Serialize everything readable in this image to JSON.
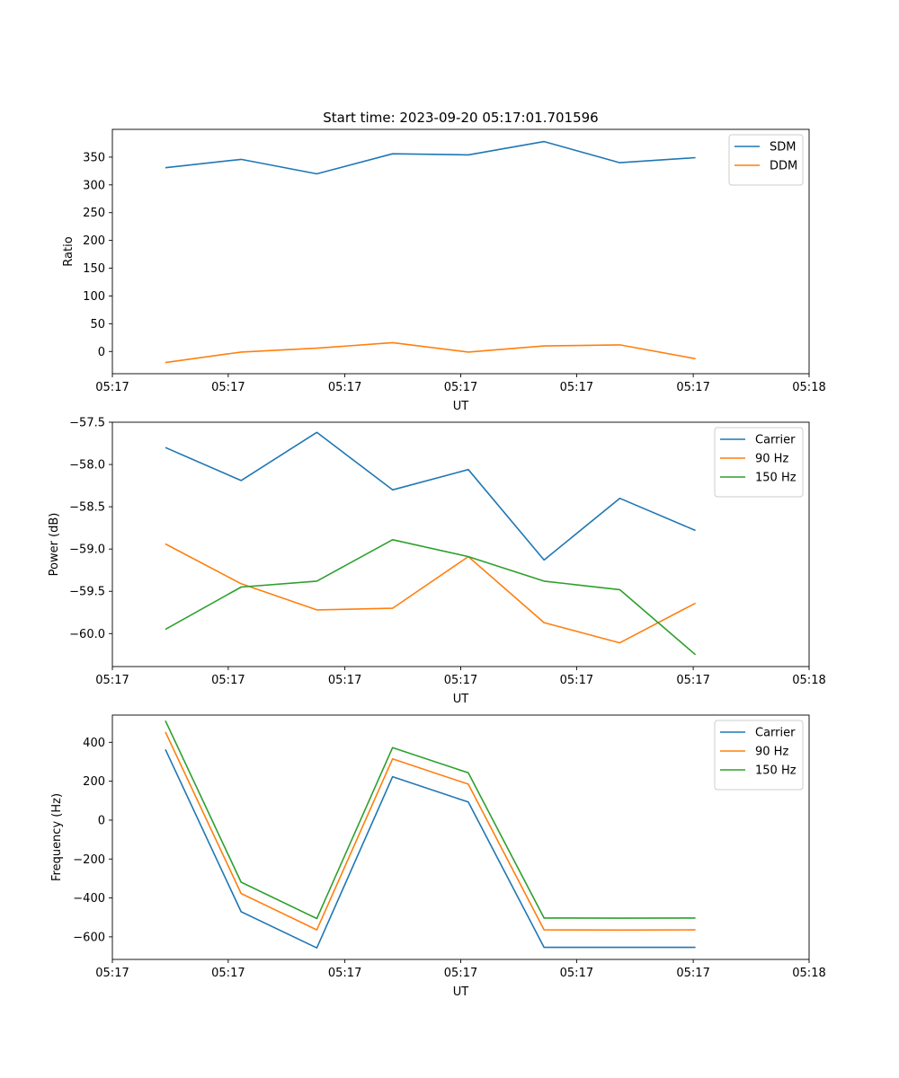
{
  "chart_data": [
    {
      "type": "line",
      "title": "Start time: 2023-09-20 05:17:01.701596",
      "xlabel": "UT",
      "ylabel": "Ratio",
      "x": [
        1,
        2,
        3,
        4,
        5,
        6,
        7,
        8
      ],
      "xlim": [
        0.3,
        9.5
      ],
      "xtick_values": [
        0.3,
        1.83,
        3.37,
        4.9,
        6.43,
        7.97,
        9.5
      ],
      "xtick_labels": [
        "05:17",
        "05:17",
        "05:17",
        "05:17",
        "05:17",
        "05:17",
        "05:18"
      ],
      "ylim": [
        -40,
        400
      ],
      "yticks": [
        0,
        50,
        100,
        150,
        200,
        250,
        300,
        350
      ],
      "ytick_labels": [
        "0",
        "50",
        "100",
        "150",
        "200",
        "250",
        "300",
        "350"
      ],
      "legend_position": "top-right",
      "series": [
        {
          "name": "SDM",
          "color": "#1f77b4",
          "values": [
            331,
            346,
            320,
            356,
            354,
            378,
            340,
            349
          ]
        },
        {
          "name": "DDM",
          "color": "#ff7f0e",
          "values": [
            -20,
            -1,
            6,
            16,
            -1,
            10,
            12,
            -13
          ]
        }
      ]
    },
    {
      "type": "line",
      "title": "",
      "xlabel": "UT",
      "ylabel": "Power (dB)",
      "x": [
        1,
        2,
        3,
        4,
        5,
        6,
        7,
        8
      ],
      "xlim": [
        0.3,
        9.5
      ],
      "xtick_values": [
        0.3,
        1.83,
        3.37,
        4.9,
        6.43,
        7.97,
        9.5
      ],
      "xtick_labels": [
        "05:17",
        "05:17",
        "05:17",
        "05:17",
        "05:17",
        "05:17",
        "05:18"
      ],
      "ylim": [
        -60.39,
        -57.5
      ],
      "yticks": [
        -57.5,
        -58.0,
        -58.5,
        -59.0,
        -59.5,
        -60.0
      ],
      "ytick_labels": [
        "−57.5",
        "−58.0",
        "−58.5",
        "−59.0",
        "−59.5",
        "−60.0"
      ],
      "legend_position": "top-right",
      "series": [
        {
          "name": "Carrier",
          "color": "#1f77b4",
          "values": [
            -57.8,
            -58.19,
            -57.62,
            -58.3,
            -58.06,
            -59.13,
            -58.4,
            -58.78
          ]
        },
        {
          "name": "90 Hz",
          "color": "#ff7f0e",
          "values": [
            -58.94,
            -59.41,
            -59.72,
            -59.7,
            -59.09,
            -59.87,
            -60.11,
            -59.64
          ]
        },
        {
          "name": "150 Hz",
          "color": "#2ca02c",
          "values": [
            -59.95,
            -59.45,
            -59.38,
            -58.89,
            -59.09,
            -59.38,
            -59.48,
            -60.25
          ]
        }
      ]
    },
    {
      "type": "line",
      "title": "",
      "xlabel": "UT",
      "ylabel": "Frequency (Hz)",
      "x": [
        1,
        2,
        3,
        4,
        5,
        6,
        7,
        8
      ],
      "xlim": [
        0.3,
        9.5
      ],
      "xtick_values": [
        0.3,
        1.83,
        3.37,
        4.9,
        6.43,
        7.97,
        9.5
      ],
      "xtick_labels": [
        "05:17",
        "05:17",
        "05:17",
        "05:17",
        "05:17",
        "05:17",
        "05:18"
      ],
      "ylim": [
        -716,
        540
      ],
      "yticks": [
        400,
        200,
        0,
        -200,
        -400,
        -600
      ],
      "ytick_labels": [
        "400",
        "200",
        "0",
        "−200",
        "−400",
        "−600"
      ],
      "legend_position": "top-right",
      "series": [
        {
          "name": "Carrier",
          "color": "#1f77b4",
          "values": [
            363,
            -471,
            -657,
            223,
            93,
            -654,
            -654,
            -654
          ]
        },
        {
          "name": "90 Hz",
          "color": "#ff7f0e",
          "values": [
            453,
            -377,
            -564,
            315,
            185,
            -564,
            -565,
            -564
          ]
        },
        {
          "name": "150 Hz",
          "color": "#2ca02c",
          "values": [
            511,
            -319,
            -506,
            373,
            243,
            -503,
            -504,
            -503
          ]
        }
      ]
    }
  ]
}
